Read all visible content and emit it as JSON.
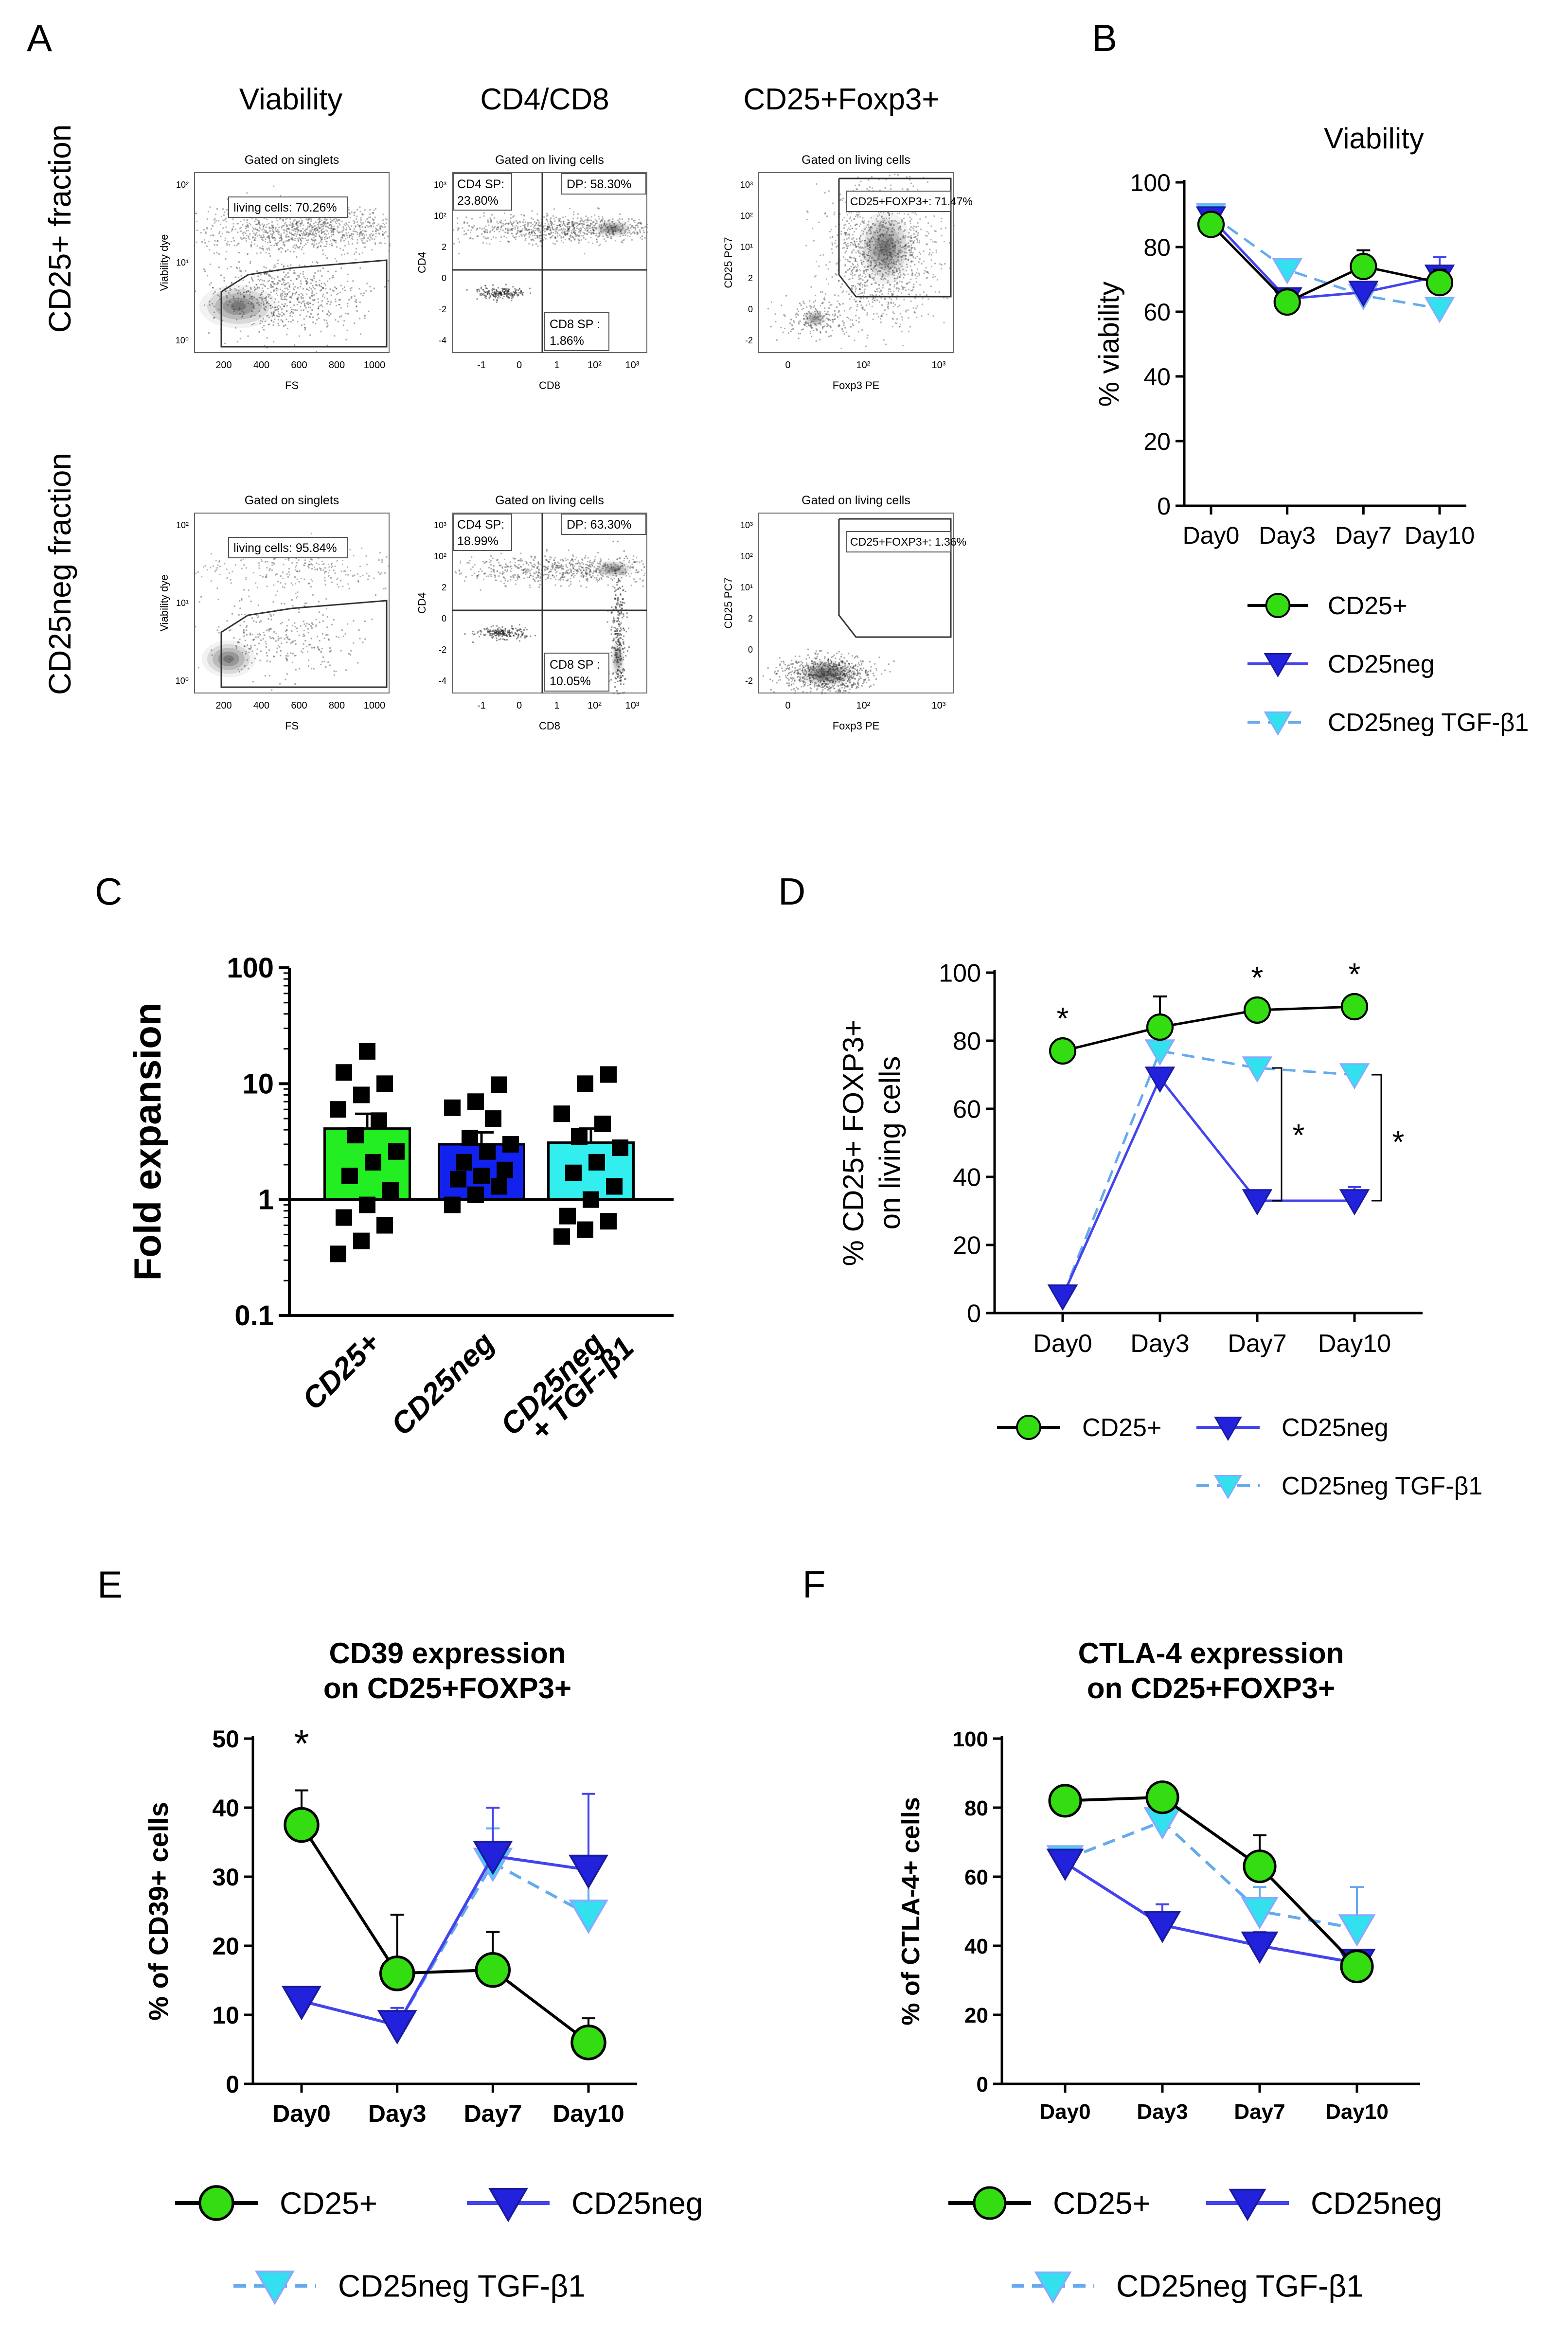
{
  "figure": {
    "panel_letters": [
      "A",
      "B",
      "C",
      "D",
      "E",
      "F"
    ]
  },
  "flow": {
    "column_titles": [
      "Viability",
      "CD4/CD8",
      "CD25+Foxp3+"
    ],
    "row_labels": [
      "CD25+ fraction",
      "CD25neg fraction"
    ],
    "plots": [
      {
        "gate_title": "Gated on singlets",
        "gate_label": "living cells: 70.26%",
        "xlabel": "FS",
        "ylabel": "Viability dye",
        "xticks": [
          "200",
          "400",
          "600",
          "800",
          "1000"
        ],
        "yticks": [
          "10²",
          "10¹",
          "10⁰"
        ]
      },
      {
        "gate_title": "Gated on living cells",
        "q_ul": "CD4 SP:",
        "q_ul2": "23.80%",
        "q_ur": "DP: 58.30%",
        "q_lr": "CD8 SP :",
        "q_lr2": "1.86%",
        "xlabel": "CD8",
        "ylabel": "CD4",
        "xticks": [
          "-1",
          "0",
          "1",
          "10²",
          "10³"
        ],
        "yticks": [
          "10³",
          "10²",
          "2",
          "0",
          "-2",
          "-4"
        ]
      },
      {
        "gate_title": "Gated on living cells",
        "gate_label": "CD25+FOXP3+: 71.47%",
        "xlabel": "Foxp3 PE",
        "ylabel": "CD25 PC7",
        "xticks": [
          "0",
          "10²",
          "10³"
        ],
        "yticks": [
          "10³",
          "10²",
          "10¹",
          "2",
          "0",
          "-2"
        ]
      },
      {
        "gate_title": "Gated on singlets",
        "gate_label": "living cells: 95.84%",
        "xlabel": "FS",
        "ylabel": "Viability dye",
        "xticks": [
          "200",
          "400",
          "600",
          "800",
          "1000"
        ],
        "yticks": [
          "10²",
          "10¹",
          "10⁰"
        ]
      },
      {
        "gate_title": "Gated on living cells",
        "q_ul": "CD4 SP:",
        "q_ul2": "18.99%",
        "q_ur": "DP: 63.30%",
        "q_lr": "CD8 SP :",
        "q_lr2": "10.05%",
        "xlabel": "CD8",
        "ylabel": "CD4",
        "xticks": [
          "-1",
          "0",
          "1",
          "10²",
          "10³"
        ],
        "yticks": [
          "10³",
          "10²",
          "2",
          "0",
          "-2",
          "-4"
        ]
      },
      {
        "gate_title": "Gated on living cells",
        "gate_label": "CD25+FOXP3+: 1.36%",
        "xlabel": "Foxp3 PE",
        "ylabel": "CD25 PC7",
        "xticks": [
          "0",
          "10²",
          "10³"
        ],
        "yticks": [
          "10³",
          "10²",
          "10¹",
          "2",
          "0",
          "-2"
        ]
      }
    ]
  },
  "colors": {
    "cd25pos_line": "#000000",
    "cd25pos_marker": "#33dd11",
    "cd25neg_line": "#4444ee",
    "cd25neg_marker": "#2222dd",
    "tgf_line": "#66aaee",
    "tgf_marker": "#33e0ee",
    "bar_cd25pos": "#22ee22",
    "bar_cd25neg": "#1122ee",
    "bar_tgf": "#33eeee"
  },
  "chart_data": [
    {
      "id": "B",
      "type": "line",
      "title": "Viability",
      "xlabel": "",
      "ylabel": "% viability",
      "categories": [
        "Day0",
        "Day3",
        "Day7",
        "Day10"
      ],
      "ylim": [
        0,
        100
      ],
      "yticks": [
        0,
        20,
        40,
        60,
        80,
        100
      ],
      "series": [
        {
          "name": "CD25+",
          "values": [
            87,
            63,
            74,
            69
          ],
          "err": [
            2,
            2,
            5,
            4
          ]
        },
        {
          "name": "CD25neg",
          "values": [
            89,
            64,
            66,
            71
          ],
          "err": [
            1,
            3,
            3,
            6
          ]
        },
        {
          "name": "CD25neg TGF-β1",
          "values": [
            90,
            73,
            65,
            61
          ],
          "err": [
            1,
            3,
            2,
            2
          ]
        }
      ],
      "legend": [
        "CD25+",
        "CD25neg",
        "CD25neg TGF-β1"
      ]
    },
    {
      "id": "C",
      "type": "bar",
      "title": "",
      "xlabel": "",
      "ylabel": "Fold expansion",
      "yscale": "log",
      "ylim": [
        0.1,
        100
      ],
      "yticks": [
        "0.1",
        "1",
        "10",
        "100"
      ],
      "categories": [
        "CD25+",
        "CD25neg",
        "CD25neg\n+ TGF-β1"
      ],
      "category_lines": [
        [
          "CD25+"
        ],
        [
          "CD25neg"
        ],
        [
          "CD25neg",
          "+ TGF-β1"
        ]
      ],
      "values": [
        4.1,
        3.0,
        3.1
      ],
      "err": [
        1.4,
        0.8,
        1.0
      ],
      "points": [
        [
          0.34,
          0.44,
          0.6,
          0.7,
          0.9,
          1.2,
          1.6,
          2.1,
          2.6,
          3.6,
          4.8,
          6.0,
          8.0,
          10.0,
          12.5,
          19.0
        ],
        [
          0.9,
          1.1,
          1.3,
          1.5,
          1.6,
          1.8,
          2.1,
          2.6,
          3.0,
          3.4,
          5.0,
          6.2,
          7.0,
          9.8
        ],
        [
          0.48,
          0.55,
          0.65,
          0.72,
          1.0,
          1.3,
          1.7,
          2.1,
          2.8,
          3.5,
          4.5,
          5.5,
          10.0,
          12.0
        ]
      ]
    },
    {
      "id": "D",
      "type": "line",
      "title": "",
      "xlabel": "",
      "ylabel": "% CD25+ FOXP3+\non living cells",
      "ylabel_lines": [
        "% CD25+ FOXP3+",
        "on living cells"
      ],
      "categories": [
        "Day0",
        "Day3",
        "Day7",
        "Day10"
      ],
      "ylim": [
        0,
        100
      ],
      "yticks": [
        0,
        20,
        40,
        60,
        80,
        100
      ],
      "series": [
        {
          "name": "CD25+",
          "values": [
            77,
            84,
            89,
            90
          ],
          "err": [
            1,
            9,
            1,
            1
          ]
        },
        {
          "name": "CD25neg",
          "values": [
            5,
            69,
            33,
            33
          ],
          "err": [
            0,
            3,
            2,
            4
          ]
        },
        {
          "name": "CD25neg TGF-β1",
          "values": [
            5,
            77,
            72,
            70
          ],
          "err": [
            0,
            3,
            3,
            3
          ]
        }
      ],
      "annotations": [
        "*",
        "*",
        "*",
        "*",
        "*"
      ],
      "legend": [
        "CD25+",
        "CD25neg",
        "CD25neg TGF-β1"
      ]
    },
    {
      "id": "E",
      "type": "line",
      "title": "CD39 expression\non CD25+FOXP3+",
      "title_lines": [
        "CD39 expression",
        "on CD25+FOXP3+"
      ],
      "ylabel": "% of CD39+ cells",
      "categories": [
        "Day0",
        "Day3",
        "Day7",
        "Day10"
      ],
      "ylim": [
        0,
        50
      ],
      "yticks": [
        0,
        10,
        20,
        30,
        40,
        50
      ],
      "series": [
        {
          "name": "CD25+",
          "values": [
            37.5,
            16,
            16.5,
            6
          ],
          "err": [
            5,
            8.5,
            5.5,
            3.5
          ]
        },
        {
          "name": "CD25neg",
          "values": [
            12,
            8.5,
            33,
            31
          ],
          "err": [
            1,
            2.5,
            7,
            11
          ]
        },
        {
          "name": "CD25neg TGF-β1",
          "values": [
            12,
            8.5,
            32,
            24.5
          ],
          "err": [
            1,
            2,
            5,
            7
          ]
        }
      ],
      "annotations": [
        "*"
      ],
      "legend": [
        "CD25+",
        "CD25neg",
        "CD25neg TGF-β1"
      ]
    },
    {
      "id": "F",
      "type": "line",
      "title": "CTLA-4 expression\non CD25+FOXP3+",
      "title_lines": [
        "CTLA-4 expression",
        "on CD25+FOXP3+"
      ],
      "ylabel": "% of CTLA-4+ cells",
      "categories": [
        "Day0",
        "Day3",
        "Day7",
        "Day10"
      ],
      "ylim": [
        0,
        100
      ],
      "yticks": [
        0,
        20,
        40,
        60,
        80,
        100
      ],
      "series": [
        {
          "name": "CD25+",
          "values": [
            82,
            83,
            63,
            34
          ],
          "err": [
            2,
            2,
            9,
            2
          ]
        },
        {
          "name": "CD25neg",
          "values": [
            64,
            46,
            40,
            35
          ],
          "err": [
            1,
            6,
            4,
            3
          ]
        },
        {
          "name": "CD25neg TGF-β1",
          "values": [
            65,
            76,
            50,
            45
          ],
          "err": [
            1,
            4,
            7,
            12
          ]
        }
      ],
      "legend": [
        "CD25+",
        "CD25neg",
        "CD25neg TGF-β1"
      ]
    }
  ]
}
